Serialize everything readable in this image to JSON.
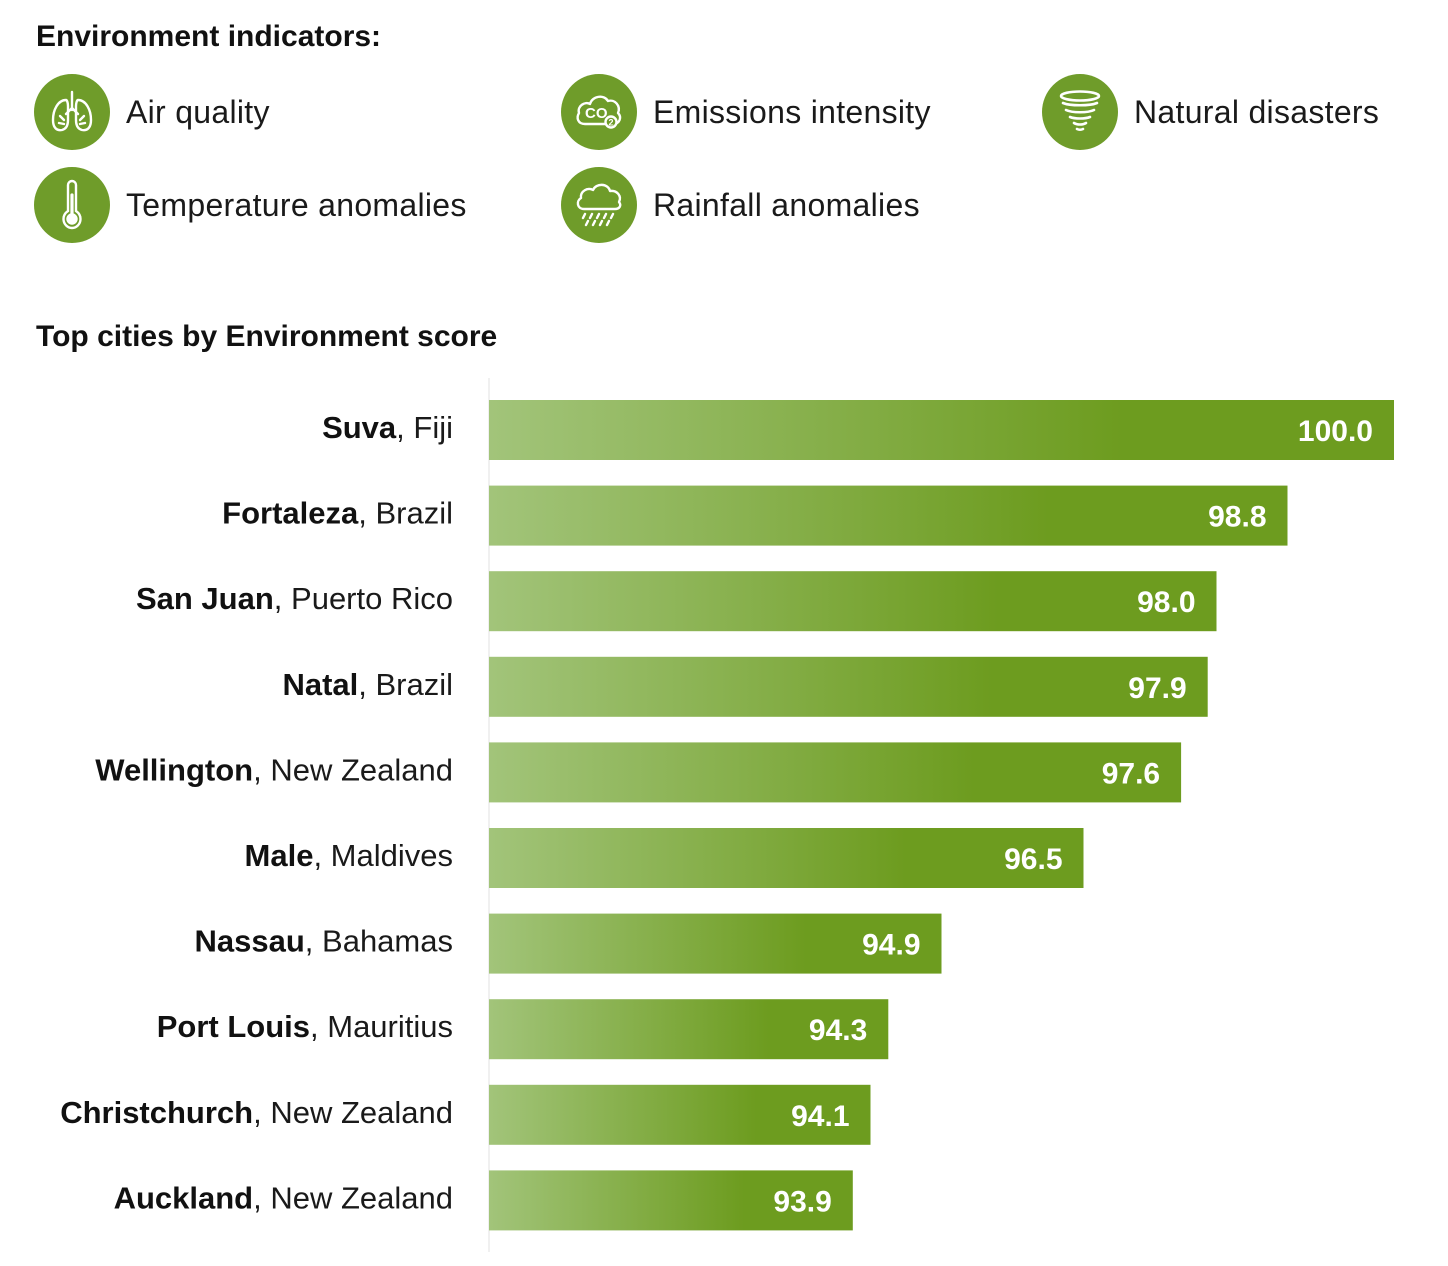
{
  "indicators_heading": "Environment indicators:",
  "indicators": [
    {
      "label": "Air quality",
      "icon": "lungs-icon"
    },
    {
      "label": "Emissions intensity",
      "icon": "co2-icon"
    },
    {
      "label": "Natural disasters",
      "icon": "tornado-icon"
    },
    {
      "label": "Temperature anomalies",
      "icon": "thermometer-icon"
    },
    {
      "label": "Rainfall anomalies",
      "icon": "rain-cloud-icon"
    }
  ],
  "colors": {
    "icon_bg": "#6f9c2a",
    "bar_light": "#a2c47a",
    "bar_dark": "#6d9c1f",
    "value_text": "#ffffff"
  },
  "chart_data": {
    "type": "bar",
    "orientation": "horizontal",
    "title": "Top cities by Environment score",
    "categories": [
      {
        "city": "Suva",
        "country": "Fiji"
      },
      {
        "city": "Fortaleza",
        "country": "Brazil"
      },
      {
        "city": "San Juan",
        "country": "Puerto Rico"
      },
      {
        "city": "Natal",
        "country": "Brazil"
      },
      {
        "city": "Wellington",
        "country": "New Zealand"
      },
      {
        "city": "Male",
        "country": "Maldives"
      },
      {
        "city": "Nassau",
        "country": "Bahamas"
      },
      {
        "city": "Port Louis",
        "country": "Mauritius"
      },
      {
        "city": "Christchurch",
        "country": "New Zealand"
      },
      {
        "city": "Auckland",
        "country": "New Zealand"
      }
    ],
    "values": [
      100.0,
      98.8,
      98.0,
      97.9,
      97.6,
      96.5,
      94.9,
      94.3,
      94.1,
      93.9
    ],
    "value_labels": [
      "100.0",
      "98.8",
      "98.0",
      "97.9",
      "97.6",
      "96.5",
      "94.9",
      "94.3",
      "94.1",
      "93.9"
    ],
    "xlim": [
      89.8,
      100.0
    ],
    "xlabel": "",
    "ylabel": "",
    "grid": false,
    "legend": "none"
  }
}
